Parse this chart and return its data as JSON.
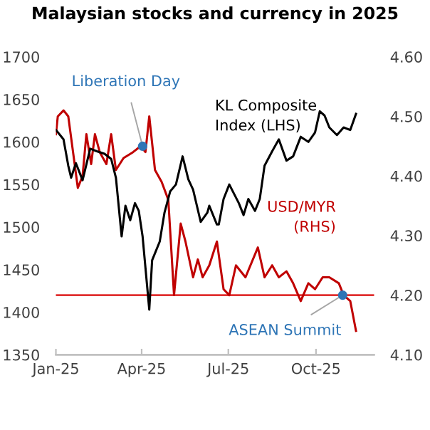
{
  "chart_data": {
    "type": "line",
    "title": "Malaysian stocks and currency in 2025",
    "series": [
      {
        "name": "KL Composite\nIndex (LHS)",
        "color": "#000000",
        "x": [
          "2025-01-01",
          "2025-01-09",
          "2025-01-14",
          "2025-01-17",
          "2025-01-22",
          "2025-01-29",
          "2025-02-06",
          "2025-02-13",
          "2025-02-21",
          "2025-02-28",
          "2025-03-05",
          "2025-03-11",
          "2025-03-15",
          "2025-03-20",
          "2025-03-25",
          "2025-03-29",
          "2025-04-02",
          "2025-04-09",
          "2025-04-12",
          "2025-04-20",
          "2025-04-25",
          "2025-05-01",
          "2025-05-07",
          "2025-05-14",
          "2025-05-20",
          "2025-05-25",
          "2025-06-02",
          "2025-06-09",
          "2025-06-11",
          "2025-06-19",
          "2025-06-21",
          "2025-06-26",
          "2025-07-02",
          "2025-07-12",
          "2025-07-17",
          "2025-07-22",
          "2025-07-29",
          "2025-08-03",
          "2025-08-08",
          "2025-08-16",
          "2025-08-23",
          "2025-08-31",
          "2025-09-07",
          "2025-09-15",
          "2025-09-23",
          "2025-09-30",
          "2025-10-05",
          "2025-10-10",
          "2025-10-15",
          "2025-10-23",
          "2025-10-30",
          "2025-11-06",
          "2025-11-12"
        ],
        "values": [
          1614,
          1603,
          1572,
          1558,
          1575,
          1555,
          1592,
          1589,
          1586,
          1580,
          1558,
          1489,
          1525,
          1508,
          1528,
          1519,
          1489,
          1403,
          1461,
          1483,
          1517,
          1542,
          1550,
          1583,
          1556,
          1544,
          1506,
          1517,
          1525,
          1503,
          1503,
          1533,
          1550,
          1528,
          1514,
          1533,
          1519,
          1533,
          1572,
          1589,
          1603,
          1578,
          1583,
          1606,
          1600,
          1611,
          1636,
          1631,
          1617,
          1608,
          1617,
          1614,
          1633
        ]
      },
      {
        "name": "USD/MYR\n(RHS)",
        "color": "#c00000",
        "axis": "y2",
        "x": [
          "2025-01-01",
          "2025-01-03",
          "2025-01-09",
          "2025-01-14",
          "2025-01-19",
          "2025-01-24",
          "2025-01-29",
          "2025-02-02",
          "2025-02-07",
          "2025-02-11",
          "2025-02-16",
          "2025-02-23",
          "2025-02-28",
          "2025-03-05",
          "2025-03-13",
          "2025-03-23",
          "2025-03-31",
          "2025-04-05",
          "2025-04-09",
          "2025-04-15",
          "2025-04-22",
          "2025-04-29",
          "2025-05-05",
          "2025-05-12",
          "2025-05-17",
          "2025-05-25",
          "2025-05-30",
          "2025-06-04",
          "2025-06-11",
          "2025-06-19",
          "2025-06-26",
          "2025-07-02",
          "2025-07-09",
          "2025-07-19",
          "2025-08-01",
          "2025-08-08",
          "2025-08-16",
          "2025-08-23",
          "2025-08-31",
          "2025-09-07",
          "2025-09-15",
          "2025-09-23",
          "2025-09-30",
          "2025-10-08",
          "2025-10-15",
          "2025-10-25",
          "2025-10-30",
          "2025-11-06",
          "2025-11-12"
        ],
        "values": [
          4.47,
          4.5,
          4.51,
          4.5,
          4.44,
          4.38,
          4.4,
          4.47,
          4.42,
          4.47,
          4.44,
          4.42,
          4.47,
          4.41,
          4.43,
          4.44,
          4.45,
          4.44,
          4.5,
          4.41,
          4.39,
          4.36,
          4.2,
          4.32,
          4.29,
          4.23,
          4.26,
          4.23,
          4.25,
          4.29,
          4.21,
          4.2,
          4.25,
          4.23,
          4.28,
          4.23,
          4.25,
          4.23,
          4.24,
          4.22,
          4.19,
          4.22,
          4.21,
          4.23,
          4.23,
          4.22,
          4.2,
          4.19,
          4.14
        ]
      },
      {
        "type": "scatter",
        "color": "#2e75b6",
        "x": [
          "2025-04-02",
          "2025-10-29"
        ],
        "values": [
          1595,
          1420
        ]
      }
    ],
    "xlim": [
      "2025-01-01",
      "2025-12-01"
    ],
    "xticks": [
      {
        "value": "2025-01-01",
        "label": "Jan-25"
      },
      {
        "value": "2025-04-01",
        "label": "Apr-25"
      },
      {
        "value": "2025-07-01",
        "label": "Jul-25"
      },
      {
        "value": "2025-10-01",
        "label": "Oct-25"
      }
    ],
    "ylim": [
      1350,
      1700
    ],
    "yticks": [
      1350,
      1400,
      1450,
      1500,
      1550,
      1600,
      1650,
      1700
    ],
    "y2lim": [
      4.1,
      4.6
    ],
    "y2ticks": [
      {
        "value": 4.1,
        "label": "4.10"
      },
      {
        "value": 4.2,
        "label": "4.20"
      },
      {
        "value": 4.3,
        "label": "4.30"
      },
      {
        "value": 4.4,
        "label": "4.40"
      },
      {
        "value": 4.5,
        "label": "4.50"
      },
      {
        "value": 4.6,
        "label": "4.60"
      }
    ],
    "ref_lines": [
      {
        "axis": "y2",
        "value": 4.2,
        "color": "#e03030"
      }
    ],
    "annotations": [
      {
        "text": "Liberation Day",
        "x": "2025-04-02",
        "y": 1595
      },
      {
        "text": "ASEAN Summit",
        "x": "2025-10-29",
        "y": 1420
      }
    ],
    "grid": false,
    "legend": false
  }
}
